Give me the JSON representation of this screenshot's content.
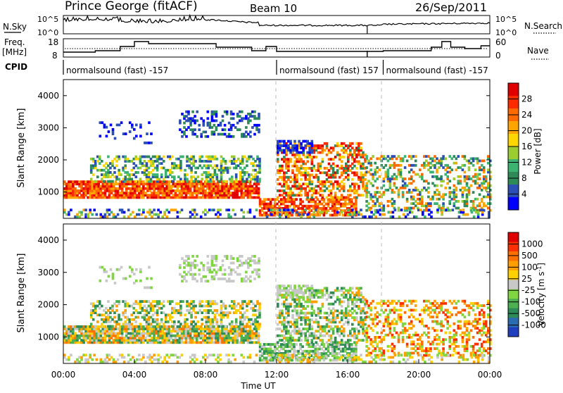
{
  "header": {
    "station": "Prince George (fitACF)",
    "beam": "Beam 10",
    "date": "26/Sep/2011"
  },
  "strip_labels": {
    "nsky": "N.Sky",
    "nsearch": "N.Search",
    "freq_line1": "Freq.",
    "freq_line2": "[MHz]",
    "nave": "Nave",
    "cpid": "CPID"
  },
  "chart_data": [
    {
      "type": "line",
      "panel": "noise",
      "left_ticks": [
        "10^5",
        "10^0"
      ],
      "right_ticks": [
        "10^5",
        "10^0"
      ]
    },
    {
      "type": "line",
      "panel": "frequency",
      "left_ticks": [
        "18",
        "8"
      ],
      "right_ticks": [
        "60",
        "0"
      ]
    },
    {
      "type": "table",
      "panel": "cpid",
      "segments": [
        {
          "start_hour": 0,
          "label": "normalsound (fast) -157"
        },
        {
          "start_hour": 12,
          "label": "normalsound (fast) 157"
        },
        {
          "start_hour": 18,
          "label": "normalsound (fast) -157"
        }
      ]
    },
    {
      "type": "heatmap",
      "panel": "power",
      "ylabel": "Slant Range [km]",
      "yticks": [
        "1000",
        "2000",
        "3000",
        "4000"
      ],
      "ylim": [
        180,
        4500
      ],
      "colorbar_label": "Power [dB]",
      "colorbar_ticks": [
        "4",
        "8",
        "12",
        "16",
        "20",
        "24",
        "28"
      ],
      "colorbar_colors": [
        "#0000ff",
        "#2b4fb5",
        "#2e8b57",
        "#3cb371",
        "#9acd32",
        "#ffd700",
        "#ffa500",
        "#ff6a00",
        "#ff2a00",
        "#e00000"
      ]
    },
    {
      "type": "heatmap",
      "panel": "velocity",
      "ylabel": "Slant Range [km]",
      "yticks": [
        "1000",
        "2000",
        "3000",
        "4000"
      ],
      "ylim": [
        180,
        4500
      ],
      "colorbar_label": "Velocity [m s",
      "colorbar_label_sup": "-1",
      "colorbar_label_end": "]",
      "colorbar_ticks": [
        "1000",
        "500",
        "100",
        "25",
        "-25",
        "-100",
        "-500",
        "-1000"
      ],
      "colorbar_colors": [
        "#1f3fbf",
        "#2b6cb0",
        "#2e8b57",
        "#4caf50",
        "#7fd640",
        "#c8c8c8",
        "#ffd000",
        "#ffa000",
        "#ff7000",
        "#ff3000",
        "#e00000"
      ]
    }
  ],
  "xaxis": {
    "ticks": [
      "00:00",
      "04:00",
      "08:00",
      "12:00",
      "16:00",
      "20:00",
      "00:00"
    ],
    "label": "Time UT"
  }
}
